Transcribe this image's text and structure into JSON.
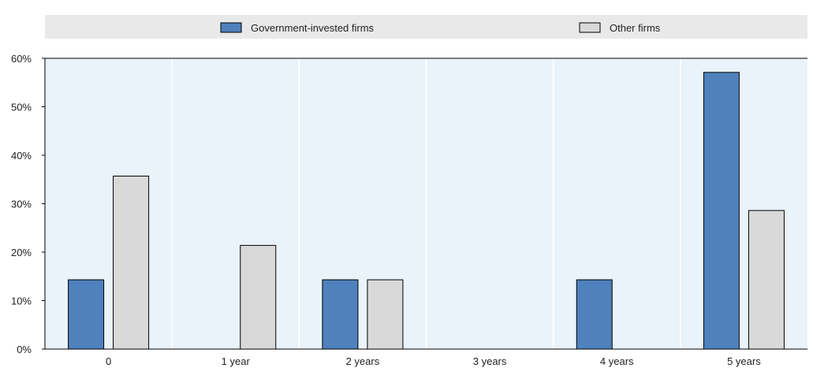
{
  "chart_data": {
    "type": "bar",
    "categories": [
      "0",
      "1 year",
      "2 years",
      "3 years",
      "4 years",
      "5 years"
    ],
    "series": [
      {
        "name": "Government-invested firms",
        "values": [
          14.3,
          0,
          14.3,
          0,
          14.3,
          57.1
        ],
        "color": "#4f81bd"
      },
      {
        "name": "Other firms",
        "values": [
          35.7,
          21.4,
          14.3,
          0,
          0,
          28.6
        ],
        "color": "#d9d9d9"
      }
    ],
    "y_ticks": [
      "0%",
      "10%",
      "20%",
      "30%",
      "40%",
      "50%",
      "60%"
    ],
    "ylim": [
      0,
      60
    ],
    "grid": "vertical category separators",
    "legend_position": "top",
    "colors": {
      "plot_background": "#eaf2fa",
      "legend_background": "#e9e9e9",
      "bar_stroke": "#000000"
    }
  }
}
